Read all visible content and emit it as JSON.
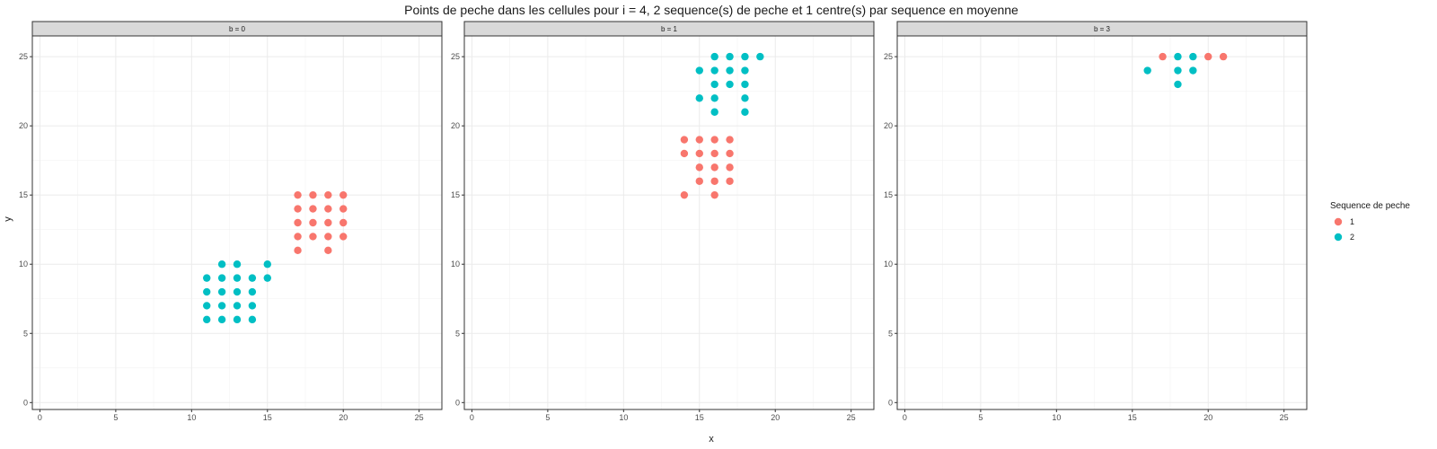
{
  "chart_data": {
    "type": "scatter",
    "title": "Points de peche dans les cellules pour i = 4, 2 sequence(s) de peche et 1 centre(s) par sequence en moyenne",
    "xlabel": "x",
    "ylabel": "y",
    "xlim": [
      -0.5,
      26.5
    ],
    "ylim": [
      -0.5,
      26.5
    ],
    "x_ticks": [
      0,
      5,
      10,
      15,
      20,
      25
    ],
    "y_ticks": [
      0,
      5,
      10,
      15,
      20,
      25
    ],
    "grid": true,
    "legend": {
      "title": "Sequence de peche",
      "position": "right",
      "entries": [
        {
          "label": "1",
          "color": "#F8766D"
        },
        {
          "label": "2",
          "color": "#00BFC4"
        }
      ]
    },
    "panels": [
      {
        "strip": "b = 0",
        "series": [
          {
            "name": "1",
            "color": "#F8766D",
            "points": [
              [
                17,
                15
              ],
              [
                18,
                15
              ],
              [
                19,
                15
              ],
              [
                20,
                15
              ],
              [
                17,
                14
              ],
              [
                18,
                14
              ],
              [
                19,
                14
              ],
              [
                20,
                14
              ],
              [
                17,
                13
              ],
              [
                18,
                13
              ],
              [
                19,
                13
              ],
              [
                20,
                13
              ],
              [
                17,
                12
              ],
              [
                18,
                12
              ],
              [
                19,
                12
              ],
              [
                20,
                12
              ],
              [
                17,
                11
              ],
              [
                19,
                11
              ]
            ]
          },
          {
            "name": "2",
            "color": "#00BFC4",
            "points": [
              [
                12,
                10
              ],
              [
                13,
                10
              ],
              [
                15,
                10
              ],
              [
                11,
                9
              ],
              [
                12,
                9
              ],
              [
                13,
                9
              ],
              [
                14,
                9
              ],
              [
                15,
                9
              ],
              [
                11,
                8
              ],
              [
                12,
                8
              ],
              [
                13,
                8
              ],
              [
                14,
                8
              ],
              [
                11,
                7
              ],
              [
                12,
                7
              ],
              [
                13,
                7
              ],
              [
                14,
                7
              ],
              [
                11,
                6
              ],
              [
                12,
                6
              ],
              [
                13,
                6
              ],
              [
                14,
                6
              ]
            ]
          }
        ]
      },
      {
        "strip": "b = 1",
        "series": [
          {
            "name": "1",
            "color": "#F8766D",
            "points": [
              [
                14,
                19
              ],
              [
                15,
                19
              ],
              [
                16,
                19
              ],
              [
                17,
                19
              ],
              [
                14,
                18
              ],
              [
                15,
                18
              ],
              [
                16,
                18
              ],
              [
                17,
                18
              ],
              [
                15,
                17
              ],
              [
                16,
                17
              ],
              [
                17,
                17
              ],
              [
                15,
                16
              ],
              [
                16,
                16
              ],
              [
                17,
                16
              ],
              [
                14,
                15
              ],
              [
                16,
                15
              ]
            ]
          },
          {
            "name": "2",
            "color": "#00BFC4",
            "points": [
              [
                16,
                25
              ],
              [
                17,
                25
              ],
              [
                18,
                25
              ],
              [
                19,
                25
              ],
              [
                15,
                24
              ],
              [
                16,
                24
              ],
              [
                17,
                24
              ],
              [
                18,
                24
              ],
              [
                16,
                23
              ],
              [
                17,
                23
              ],
              [
                18,
                23
              ],
              [
                15,
                22
              ],
              [
                16,
                22
              ],
              [
                18,
                22
              ],
              [
                16,
                21
              ],
              [
                18,
                21
              ]
            ]
          }
        ]
      },
      {
        "strip": "b = 3",
        "series": [
          {
            "name": "1",
            "color": "#F8766D",
            "points": [
              [
                17,
                25
              ],
              [
                20,
                25
              ],
              [
                21,
                25
              ]
            ]
          },
          {
            "name": "2",
            "color": "#00BFC4",
            "points": [
              [
                18,
                25
              ],
              [
                19,
                25
              ],
              [
                16,
                24
              ],
              [
                18,
                24
              ],
              [
                19,
                24
              ],
              [
                18,
                23
              ]
            ]
          }
        ]
      }
    ]
  }
}
